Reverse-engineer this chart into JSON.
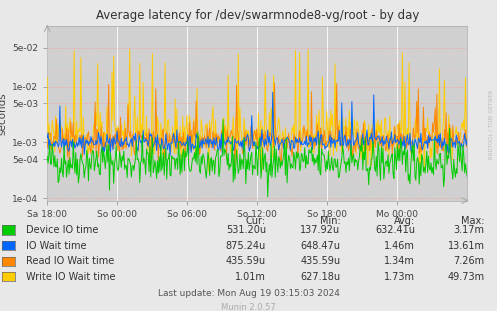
{
  "title": "Average latency for /dev/swarmnode8-vg/root - by day",
  "ylabel": "seconds",
  "xlabel_ticks": [
    "Sa 18:00",
    "So 00:00",
    "So 06:00",
    "So 12:00",
    "So 18:00",
    "Mo 00:00"
  ],
  "yticks": [
    0.0001,
    0.0005,
    0.001,
    0.005,
    0.01,
    0.05
  ],
  "ytick_labels": [
    "1e-04",
    "5e-04",
    "1e-03",
    "5e-03",
    "1e-02",
    "5e-02"
  ],
  "bg_color": "#e8e8e8",
  "plot_bg_color": "#d0d0d0",
  "grid_color_major": "#ff9999",
  "grid_color_minor": "#ffcccc",
  "vgrid_color": "#ffffff",
  "colors": {
    "device_io": "#00cc00",
    "io_wait": "#0066ff",
    "read_io_wait": "#ff8800",
    "write_io_wait": "#ffcc00"
  },
  "legend": [
    {
      "label": "Device IO time",
      "color": "#00cc00"
    },
    {
      "label": "IO Wait time",
      "color": "#0066ff"
    },
    {
      "label": "Read IO Wait time",
      "color": "#ff8800"
    },
    {
      "label": "Write IO Wait time",
      "color": "#ffcc00"
    }
  ],
  "table_headers": [
    "Cur:",
    "Min:",
    "Avg:",
    "Max:"
  ],
  "table_rows": [
    [
      "531.20u",
      "137.92u",
      "632.41u",
      "3.17m"
    ],
    [
      "875.24u",
      "648.47u",
      "1.46m",
      "13.61m"
    ],
    [
      "435.59u",
      "435.59u",
      "1.34m",
      "7.26m"
    ],
    [
      "1.01m",
      "627.18u",
      "1.73m",
      "49.73m"
    ]
  ],
  "footer": "Last update: Mon Aug 19 03:15:03 2024",
  "watermark": "Munin 2.0.57",
  "rrdtool_label": "RRDTOOL / TOBI OETIKER",
  "n_points": 500,
  "seed": 42
}
